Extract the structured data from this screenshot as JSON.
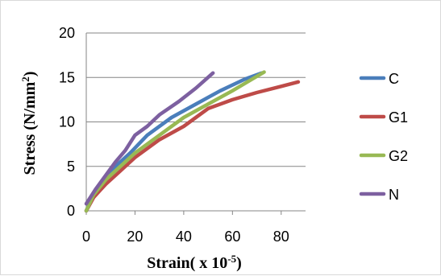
{
  "chart_data": {
    "type": "line",
    "title": "",
    "xlabel": "Strain( x 10",
    "xlabel_sup": "-5",
    "xlabel_tail": ")",
    "ylabel": "Stress (N/mm",
    "ylabel_sup": "2",
    "ylabel_tail": ")",
    "xlim": [
      0,
      90
    ],
    "ylim": [
      0,
      20
    ],
    "xticks": [
      0,
      20,
      40,
      60,
      80
    ],
    "yticks": [
      0,
      5,
      10,
      15,
      20
    ],
    "grid": "horizontal",
    "legend": "right",
    "series": [
      {
        "name": "C",
        "color": "#4a7ebb",
        "points": [
          [
            0,
            0
          ],
          [
            3,
            2
          ],
          [
            7,
            3.5
          ],
          [
            12,
            5
          ],
          [
            18,
            6.5
          ],
          [
            25,
            8.5
          ],
          [
            35,
            10.5
          ],
          [
            45,
            12
          ],
          [
            55,
            13.5
          ],
          [
            65,
            14.8
          ],
          [
            72,
            15.5
          ]
        ]
      },
      {
        "name": "G1",
        "color": "#be4b48",
        "points": [
          [
            0,
            0
          ],
          [
            3,
            1.5
          ],
          [
            8,
            3
          ],
          [
            14,
            4.5
          ],
          [
            20,
            6
          ],
          [
            30,
            8
          ],
          [
            40,
            9.5
          ],
          [
            50,
            11.5
          ],
          [
            60,
            12.5
          ],
          [
            70,
            13.3
          ],
          [
            80,
            14
          ],
          [
            87,
            14.5
          ]
        ]
      },
      {
        "name": "G2",
        "color": "#98b954",
        "points": [
          [
            0,
            0
          ],
          [
            3,
            1.8
          ],
          [
            8,
            3.5
          ],
          [
            14,
            5
          ],
          [
            20,
            6.5
          ],
          [
            30,
            8.5
          ],
          [
            40,
            10.5
          ],
          [
            50,
            12
          ],
          [
            60,
            13.5
          ],
          [
            68,
            14.8
          ],
          [
            73,
            15.6
          ]
        ]
      },
      {
        "name": "N",
        "color": "#7d60a0",
        "points": [
          [
            0,
            0.8
          ],
          [
            4,
            2.5
          ],
          [
            8,
            4
          ],
          [
            12,
            5.5
          ],
          [
            16,
            6.8
          ],
          [
            20,
            8.5
          ],
          [
            25,
            9.5
          ],
          [
            30,
            10.8
          ],
          [
            38,
            12.3
          ],
          [
            45,
            13.8
          ],
          [
            52,
            15.5
          ]
        ]
      }
    ]
  }
}
